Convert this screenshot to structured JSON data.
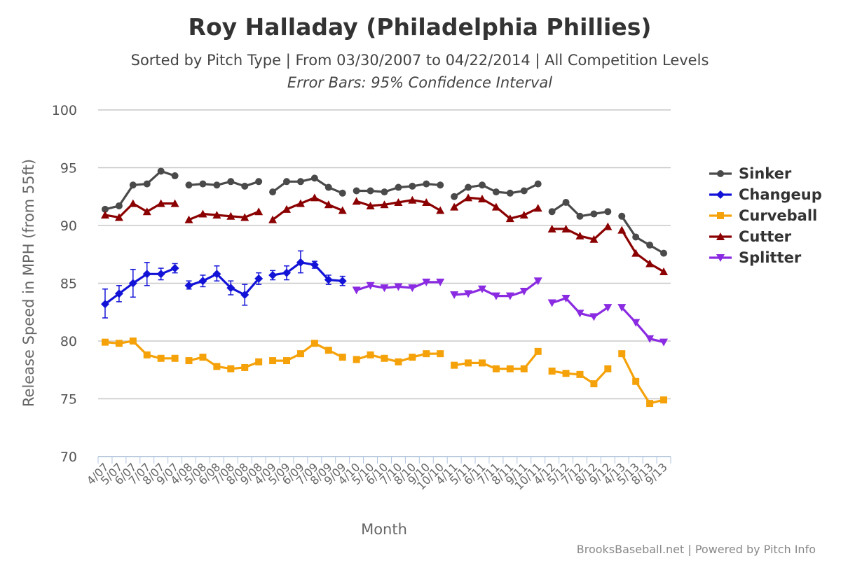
{
  "chart_data": {
    "type": "line",
    "title": "Roy Halladay (Philadelphia Phillies)",
    "subtitle": "Sorted by Pitch Type | From 03/30/2007 to 04/22/2014 | All Competition Levels",
    "subtitle2": "Error Bars: 95% Confidence Interval",
    "xlabel": "Month",
    "ylabel": "Release Speed in MPH (from 55ft)",
    "ylim": [
      70,
      100
    ],
    "yticks": [
      70,
      75,
      80,
      85,
      90,
      95,
      100
    ],
    "grid": true,
    "legend_position": "right",
    "credits": "BrooksBaseball.net | Powered by Pitch Info",
    "categories": [
      "4/07",
      "5/07",
      "6/07",
      "7/07",
      "8/07",
      "9/07",
      "4/08",
      "5/08",
      "6/08",
      "7/08",
      "8/08",
      "9/08",
      "4/09",
      "5/09",
      "6/09",
      "7/09",
      "8/09",
      "9/09",
      "4/10",
      "5/10",
      "6/10",
      "7/10",
      "8/10",
      "9/10",
      "10/10",
      "4/11",
      "5/11",
      "6/11",
      "7/11",
      "8/11",
      "9/11",
      "10/11",
      "4/12",
      "5/12",
      "7/12",
      "8/12",
      "9/12",
      "4/13",
      "5/13",
      "8/13",
      "9/13"
    ],
    "series": [
      {
        "name": "Sinker",
        "color": "#4a4a4a",
        "marker": "circle",
        "values": [
          91.4,
          91.7,
          93.5,
          93.6,
          94.7,
          94.3,
          93.5,
          93.6,
          93.5,
          93.8,
          93.4,
          93.8,
          92.9,
          93.8,
          93.8,
          94.1,
          93.3,
          92.8,
          93.0,
          93.0,
          92.9,
          93.3,
          93.4,
          93.6,
          93.5,
          92.5,
          93.3,
          93.5,
          92.9,
          92.8,
          93.0,
          93.6,
          91.2,
          92.0,
          90.8,
          91.0,
          91.2,
          90.8,
          89.0,
          88.3,
          87.6
        ]
      },
      {
        "name": "Changeup",
        "color": "#1313d8",
        "marker": "diamond",
        "values": [
          83.2,
          84.1,
          85.0,
          85.8,
          85.8,
          86.3,
          84.8,
          85.2,
          85.8,
          84.6,
          84.0,
          85.4,
          85.7,
          85.9,
          86.8,
          86.6,
          85.3,
          85.2,
          null,
          null,
          null,
          null,
          null,
          null,
          null,
          null,
          null,
          null,
          null,
          null,
          null,
          null,
          null,
          null,
          null,
          null,
          null,
          null,
          null,
          null,
          null
        ],
        "error": [
          [
            82.0,
            84.5
          ],
          [
            83.4,
            84.8
          ],
          [
            83.8,
            86.2
          ],
          [
            84.8,
            86.8
          ],
          [
            85.3,
            86.3
          ],
          [
            85.9,
            86.7
          ],
          [
            84.5,
            85.2
          ],
          [
            84.7,
            85.7
          ],
          [
            85.2,
            86.5
          ],
          [
            84.0,
            85.2
          ],
          [
            83.1,
            84.9
          ],
          [
            84.9,
            85.9
          ],
          [
            85.3,
            86.1
          ],
          [
            85.3,
            86.5
          ],
          [
            85.9,
            87.8
          ],
          [
            86.3,
            86.9
          ],
          [
            84.9,
            85.7
          ],
          [
            84.8,
            85.6
          ],
          null,
          null,
          null,
          null,
          null,
          null,
          null,
          null,
          null,
          null,
          null,
          null,
          null,
          null,
          null,
          null,
          null,
          null,
          null,
          null,
          null,
          null,
          null
        ]
      },
      {
        "name": "Curveball",
        "color": "#f5a20a",
        "marker": "square",
        "values": [
          79.9,
          79.8,
          80.0,
          78.8,
          78.5,
          78.5,
          78.3,
          78.6,
          77.8,
          77.6,
          77.7,
          78.2,
          78.3,
          78.3,
          78.9,
          79.8,
          79.2,
          78.6,
          78.4,
          78.8,
          78.5,
          78.2,
          78.6,
          78.9,
          78.9,
          77.9,
          78.1,
          78.1,
          77.6,
          77.6,
          77.6,
          79.1,
          77.4,
          77.2,
          77.1,
          76.3,
          77.6,
          78.9,
          76.5,
          74.6,
          74.9
        ]
      },
      {
        "name": "Cutter",
        "color": "#8b0000",
        "marker": "triangle",
        "values": [
          90.9,
          90.7,
          91.9,
          91.2,
          91.9,
          91.9,
          90.5,
          91.0,
          90.9,
          90.8,
          90.7,
          91.2,
          90.5,
          91.4,
          91.9,
          92.4,
          91.8,
          91.3,
          92.1,
          91.7,
          91.8,
          92.0,
          92.2,
          92.0,
          91.3,
          91.6,
          92.4,
          92.3,
          91.6,
          90.6,
          90.9,
          91.5,
          89.7,
          89.7,
          89.1,
          88.8,
          89.9,
          89.6,
          87.6,
          86.7,
          86.0
        ]
      },
      {
        "name": "Splitter",
        "color": "#8a2be2",
        "marker": "triangle-down",
        "values": [
          null,
          null,
          null,
          null,
          null,
          null,
          null,
          null,
          null,
          null,
          null,
          null,
          null,
          null,
          null,
          null,
          null,
          null,
          84.4,
          84.8,
          84.6,
          84.7,
          84.6,
          85.1,
          85.1,
          84.0,
          84.1,
          84.5,
          83.9,
          83.9,
          84.3,
          85.2,
          83.3,
          83.7,
          82.4,
          82.1,
          82.9,
          82.9,
          81.6,
          80.2,
          79.9
        ]
      }
    ],
    "segments": [
      [
        0,
        5
      ],
      [
        6,
        11
      ],
      [
        12,
        17
      ],
      [
        18,
        24
      ],
      [
        25,
        31
      ],
      [
        32,
        36
      ],
      [
        37,
        40
      ]
    ]
  }
}
